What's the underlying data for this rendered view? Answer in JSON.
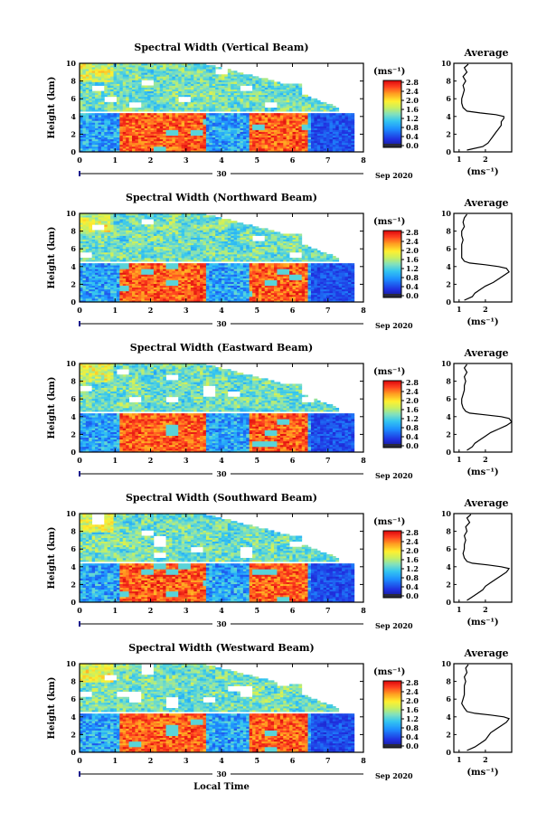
{
  "chart_data": [
    {
      "type": "heatmap",
      "title": "Spectral Width (Vertical Beam)",
      "ylabel": "Height (km)",
      "xticks": [
        "0",
        "1",
        "2",
        "3",
        "4",
        "5",
        "6",
        "7",
        "8"
      ],
      "yticks": [
        "0",
        "2",
        "4",
        "6",
        "8",
        "10"
      ],
      "xlim": [
        0,
        8
      ],
      "ylim": [
        0,
        10
      ],
      "date_label": "30",
      "date_suffix": "Sep 2020",
      "colorbar": {
        "unit": "(ms⁻¹)",
        "ticks": [
          "0.0",
          "0.4",
          "0.8",
          "1.2",
          "1.6",
          "2.0",
          "2.4",
          "2.8"
        ],
        "range": [
          0,
          2.8
        ]
      },
      "profile": {
        "title": "Average",
        "xlabel": "(ms⁻¹)",
        "xticks": [
          "1",
          "2"
        ],
        "xlim": [
          0.8,
          3.0
        ],
        "yticks": [
          "0",
          "2",
          "4",
          "6",
          "8",
          "10"
        ],
        "heights": [
          0.2,
          0.6,
          1.0,
          1.4,
          1.8,
          2.2,
          2.6,
          3.0,
          3.4,
          3.8,
          4.0,
          4.2,
          4.4,
          4.6,
          5.0,
          5.5,
          6.0,
          6.5,
          7.0,
          7.5,
          8.0,
          8.5,
          9.0,
          9.5,
          9.9
        ],
        "values": [
          1.3,
          1.9,
          2.1,
          2.2,
          2.3,
          2.4,
          2.5,
          2.6,
          2.6,
          2.7,
          2.7,
          2.4,
          1.8,
          1.3,
          1.15,
          1.1,
          1.1,
          1.15,
          1.2,
          1.15,
          1.25,
          1.15,
          1.3,
          1.2,
          1.35
        ]
      }
    },
    {
      "type": "heatmap",
      "title": "Spectral Width (Northward Beam)",
      "ylabel": "Height (km)",
      "xticks": [
        "0",
        "1",
        "2",
        "3",
        "4",
        "5",
        "6",
        "7",
        "8"
      ],
      "yticks": [
        "0",
        "2",
        "4",
        "6",
        "8",
        "10"
      ],
      "xlim": [
        0,
        8
      ],
      "ylim": [
        0,
        10
      ],
      "date_label": "30",
      "date_suffix": "Sep 2020",
      "colorbar": {
        "unit": "(ms⁻¹)",
        "ticks": [
          "0.0",
          "0.4",
          "0.8",
          "1.2",
          "1.6",
          "2.0",
          "2.4",
          "2.8"
        ],
        "range": [
          0,
          2.8
        ]
      },
      "profile": {
        "title": "Average",
        "xlabel": "(ms⁻¹)",
        "xticks": [
          "1",
          "2"
        ],
        "xlim": [
          0.8,
          3.0
        ],
        "yticks": [
          "0",
          "2",
          "4",
          "6",
          "8",
          "10"
        ],
        "heights": [
          0.2,
          0.6,
          1.0,
          1.4,
          1.8,
          2.2,
          2.6,
          3.0,
          3.4,
          3.8,
          4.0,
          4.2,
          4.4,
          4.6,
          5.0,
          5.5,
          6.0,
          6.5,
          7.0,
          7.5,
          8.0,
          8.5,
          9.0,
          9.5,
          9.9
        ],
        "values": [
          1.2,
          1.5,
          1.6,
          1.8,
          2.0,
          2.3,
          2.5,
          2.7,
          2.9,
          2.8,
          2.5,
          2.0,
          1.4,
          1.2,
          1.1,
          1.1,
          1.1,
          1.1,
          1.15,
          1.1,
          1.1,
          1.2,
          1.15,
          1.2,
          1.3
        ]
      }
    },
    {
      "type": "heatmap",
      "title": "Spectral Width (Eastward Beam)",
      "ylabel": "Height (km)",
      "xticks": [
        "0",
        "1",
        "2",
        "3",
        "4",
        "5",
        "6",
        "7",
        "8"
      ],
      "yticks": [
        "0",
        "2",
        "4",
        "6",
        "8",
        "10"
      ],
      "xlim": [
        0,
        8
      ],
      "ylim": [
        0,
        10
      ],
      "date_label": "30",
      "date_suffix": "Sep 2020",
      "colorbar": {
        "unit": "(ms⁻¹)",
        "ticks": [
          "0.0",
          "0.4",
          "0.8",
          "1.2",
          "1.6",
          "2.0",
          "2.4",
          "2.8"
        ],
        "range": [
          0,
          2.8
        ]
      },
      "profile": {
        "title": "Average",
        "xlabel": "(ms⁻¹)",
        "xticks": [
          "1",
          "2"
        ],
        "xlim": [
          0.8,
          3.0
        ],
        "yticks": [
          "0",
          "2",
          "4",
          "6",
          "8",
          "10"
        ],
        "heights": [
          0.2,
          0.6,
          1.0,
          1.4,
          1.8,
          2.2,
          2.6,
          3.0,
          3.4,
          3.8,
          4.0,
          4.2,
          4.4,
          4.6,
          5.0,
          5.5,
          6.0,
          6.5,
          7.0,
          7.5,
          8.0,
          8.5,
          9.0,
          9.5,
          9.9
        ],
        "values": [
          1.3,
          1.5,
          1.6,
          1.8,
          2.0,
          2.2,
          2.5,
          2.8,
          3.0,
          2.9,
          2.6,
          2.0,
          1.4,
          1.25,
          1.15,
          1.1,
          1.1,
          1.15,
          1.2,
          1.2,
          1.25,
          1.2,
          1.3,
          1.2,
          1.3
        ]
      }
    },
    {
      "type": "heatmap",
      "title": "Spectral Width (Southward Beam)",
      "ylabel": "Height (km)",
      "xticks": [
        "0",
        "1",
        "2",
        "3",
        "4",
        "5",
        "6",
        "7",
        "8"
      ],
      "yticks": [
        "0",
        "2",
        "4",
        "6",
        "8",
        "10"
      ],
      "xlim": [
        0,
        8
      ],
      "ylim": [
        0,
        10
      ],
      "date_label": "30",
      "date_suffix": "Sep 2020",
      "colorbar": {
        "unit": "(ms⁻¹)",
        "ticks": [
          "0.0",
          "0.4",
          "0.8",
          "1.2",
          "1.6",
          "2.0",
          "2.4",
          "2.8"
        ],
        "range": [
          0,
          2.8
        ]
      },
      "profile": {
        "title": "Average",
        "xlabel": "(ms⁻¹)",
        "xticks": [
          "1",
          "2"
        ],
        "xlim": [
          0.8,
          3.0
        ],
        "yticks": [
          "0",
          "2",
          "4",
          "6",
          "8",
          "10"
        ],
        "heights": [
          0.2,
          0.6,
          1.0,
          1.4,
          1.8,
          2.2,
          2.6,
          3.0,
          3.4,
          3.8,
          4.0,
          4.2,
          4.4,
          4.6,
          5.0,
          5.5,
          6.0,
          6.5,
          7.0,
          7.5,
          8.0,
          8.5,
          9.0,
          9.5,
          9.9
        ],
        "values": [
          1.3,
          1.5,
          1.7,
          1.9,
          2.0,
          2.2,
          2.4,
          2.6,
          2.8,
          2.9,
          2.6,
          2.1,
          1.5,
          1.3,
          1.2,
          1.15,
          1.2,
          1.2,
          1.25,
          1.2,
          1.3,
          1.25,
          1.4,
          1.3,
          1.45
        ]
      }
    },
    {
      "type": "heatmap",
      "title": "Spectral Width (Westward Beam)",
      "ylabel": "Height (km)",
      "xlabel": "Local Time",
      "xticks": [
        "0",
        "1",
        "2",
        "3",
        "4",
        "5",
        "6",
        "7",
        "8"
      ],
      "yticks": [
        "0",
        "2",
        "4",
        "6",
        "8",
        "10"
      ],
      "xlim": [
        0,
        8
      ],
      "ylim": [
        0,
        10
      ],
      "date_label": "30",
      "date_suffix": "Sep 2020",
      "colorbar": {
        "unit": "(ms⁻¹)",
        "ticks": [
          "0.0",
          "0.4",
          "0.8",
          "1.2",
          "1.6",
          "2.0",
          "2.4",
          "2.8"
        ],
        "range": [
          0,
          2.8
        ]
      },
      "profile": {
        "title": "Average",
        "xlabel": "(ms⁻¹)",
        "xticks": [
          "1",
          "2"
        ],
        "xlim": [
          0.8,
          3.0
        ],
        "yticks": [
          "0",
          "2",
          "4",
          "6",
          "8",
          "10"
        ],
        "heights": [
          0.2,
          0.6,
          1.0,
          1.4,
          1.8,
          2.2,
          2.6,
          3.0,
          3.4,
          3.8,
          4.0,
          4.2,
          4.4,
          4.6,
          5.0,
          5.5,
          6.0,
          6.5,
          7.0,
          7.5,
          8.0,
          8.5,
          9.0,
          9.5,
          9.9
        ],
        "values": [
          1.3,
          1.6,
          1.8,
          2.0,
          2.1,
          2.2,
          2.4,
          2.6,
          2.8,
          2.9,
          2.7,
          2.2,
          1.6,
          1.3,
          1.2,
          1.1,
          1.15,
          1.2,
          1.2,
          1.2,
          1.25,
          1.2,
          1.3,
          1.25,
          1.35
        ]
      }
    }
  ]
}
